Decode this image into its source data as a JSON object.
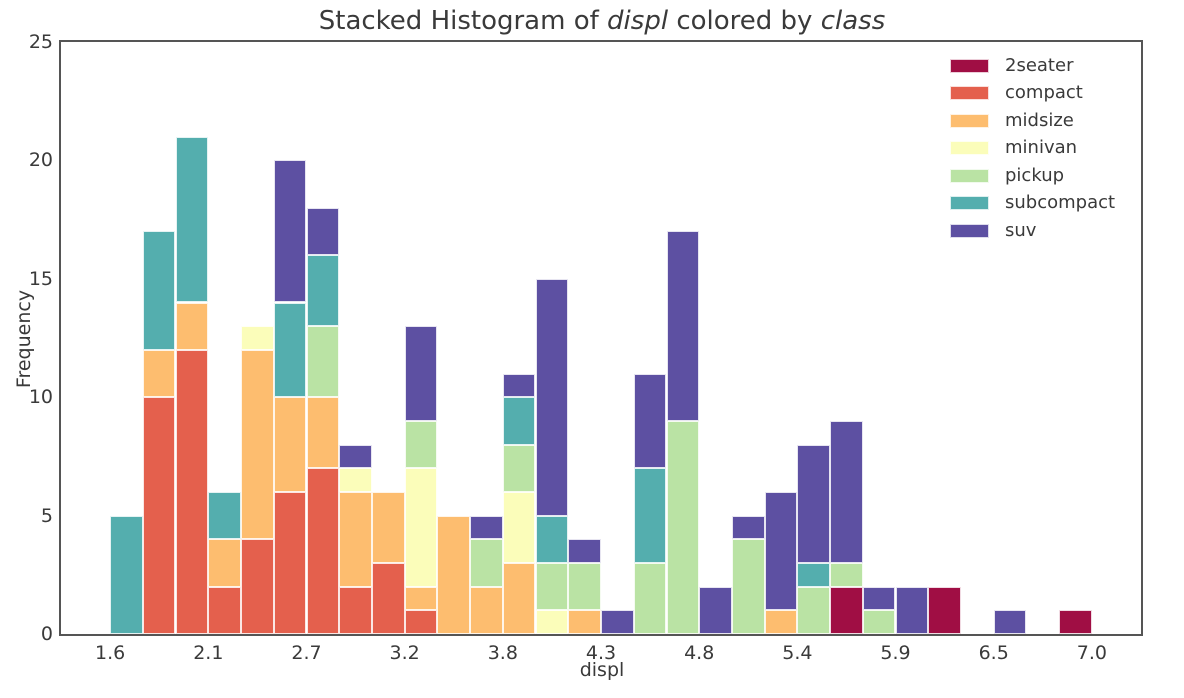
{
  "title": {
    "prefix": "Stacked Histogram of ",
    "var1": "displ",
    "middle": " colored by ",
    "var2": "class"
  },
  "axes": {
    "xlabel": "displ",
    "ylabel": "Frequency"
  },
  "style": {
    "spine_color": "#555555",
    "text_color": "#3a3a3a",
    "bar_edge_color": "rgba(255,255,255,0.85)",
    "background": "#ffffff"
  },
  "chart_data": {
    "type": "bar",
    "subtype": "stacked-histogram",
    "title": "Stacked Histogram of displ colored by class",
    "xlabel": "displ",
    "ylabel": "Frequency",
    "grid": false,
    "legend_position": "upper right",
    "xlim": [
      1.33,
      7.27
    ],
    "ylim": [
      0,
      25
    ],
    "bin_edges": [
      1.6,
      1.78,
      1.96,
      2.14,
      2.32,
      2.5,
      2.68,
      2.86,
      3.04,
      3.22,
      3.4,
      3.58,
      3.76,
      3.94,
      4.12,
      4.3,
      4.48,
      4.66,
      4.84,
      5.02,
      5.2,
      5.38,
      5.56,
      5.74,
      5.92,
      6.1,
      6.28,
      6.46,
      6.64,
      6.82,
      7.0
    ],
    "x_ticks": [
      {
        "value": 1.6,
        "label": "1.6"
      },
      {
        "value": 2.14,
        "label": "2.1"
      },
      {
        "value": 2.68,
        "label": "2.7"
      },
      {
        "value": 3.22,
        "label": "3.2"
      },
      {
        "value": 3.76,
        "label": "3.8"
      },
      {
        "value": 4.3,
        "label": "4.3"
      },
      {
        "value": 4.84,
        "label": "4.8"
      },
      {
        "value": 5.38,
        "label": "5.4"
      },
      {
        "value": 5.92,
        "label": "5.9"
      },
      {
        "value": 6.46,
        "label": "6.5"
      },
      {
        "value": 7.0,
        "label": "7.0"
      }
    ],
    "y_ticks": [
      {
        "value": 0,
        "label": "0"
      },
      {
        "value": 5,
        "label": "5"
      },
      {
        "value": 10,
        "label": "10"
      },
      {
        "value": 15,
        "label": "15"
      },
      {
        "value": 20,
        "label": "20"
      },
      {
        "value": 25,
        "label": "25"
      }
    ],
    "series": [
      {
        "name": "2seater",
        "color": "#a00e44",
        "counts": [
          0,
          0,
          0,
          0,
          0,
          0,
          0,
          0,
          0,
          0,
          0,
          0,
          0,
          0,
          0,
          0,
          0,
          0,
          0,
          0,
          0,
          0,
          2,
          0,
          0,
          2,
          0,
          0,
          0,
          1
        ]
      },
      {
        "name": "compact",
        "color": "#e4604d",
        "counts": [
          0,
          10,
          12,
          2,
          4,
          6,
          7,
          2,
          3,
          1,
          0,
          0,
          0,
          0,
          0,
          0,
          0,
          0,
          0,
          0,
          0,
          0,
          0,
          0,
          0,
          0,
          0,
          0,
          0,
          0
        ]
      },
      {
        "name": "midsize",
        "color": "#fdbd6f",
        "counts": [
          0,
          2,
          2,
          2,
          8,
          4,
          3,
          4,
          3,
          1,
          5,
          2,
          3,
          0,
          1,
          0,
          0,
          0,
          0,
          0,
          1,
          0,
          0,
          0,
          0,
          0,
          0,
          0,
          0,
          0
        ]
      },
      {
        "name": "minivan",
        "color": "#fbfdba",
        "counts": [
          0,
          0,
          0,
          0,
          1,
          0,
          0,
          1,
          0,
          5,
          0,
          0,
          3,
          1,
          0,
          0,
          0,
          0,
          0,
          0,
          0,
          0,
          0,
          0,
          0,
          0,
          0,
          0,
          0,
          0
        ]
      },
      {
        "name": "pickup",
        "color": "#bae3a4",
        "counts": [
          0,
          0,
          0,
          0,
          0,
          0,
          3,
          0,
          0,
          2,
          0,
          2,
          2,
          2,
          2,
          0,
          3,
          9,
          0,
          4,
          0,
          2,
          1,
          1,
          0,
          0,
          0,
          0,
          0,
          0
        ]
      },
      {
        "name": "subcompact",
        "color": "#54aeae",
        "counts": [
          5,
          5,
          7,
          2,
          0,
          4,
          3,
          0,
          0,
          0,
          0,
          0,
          2,
          2,
          0,
          0,
          4,
          0,
          0,
          0,
          0,
          1,
          0,
          0,
          0,
          0,
          0,
          0,
          0,
          0
        ]
      },
      {
        "name": "suv",
        "color": "#5d50a2",
        "counts": [
          0,
          0,
          0,
          0,
          0,
          6,
          2,
          1,
          0,
          4,
          0,
          1,
          1,
          10,
          1,
          1,
          4,
          8,
          2,
          1,
          5,
          5,
          6,
          1,
          2,
          0,
          0,
          1,
          0,
          0
        ]
      }
    ]
  }
}
